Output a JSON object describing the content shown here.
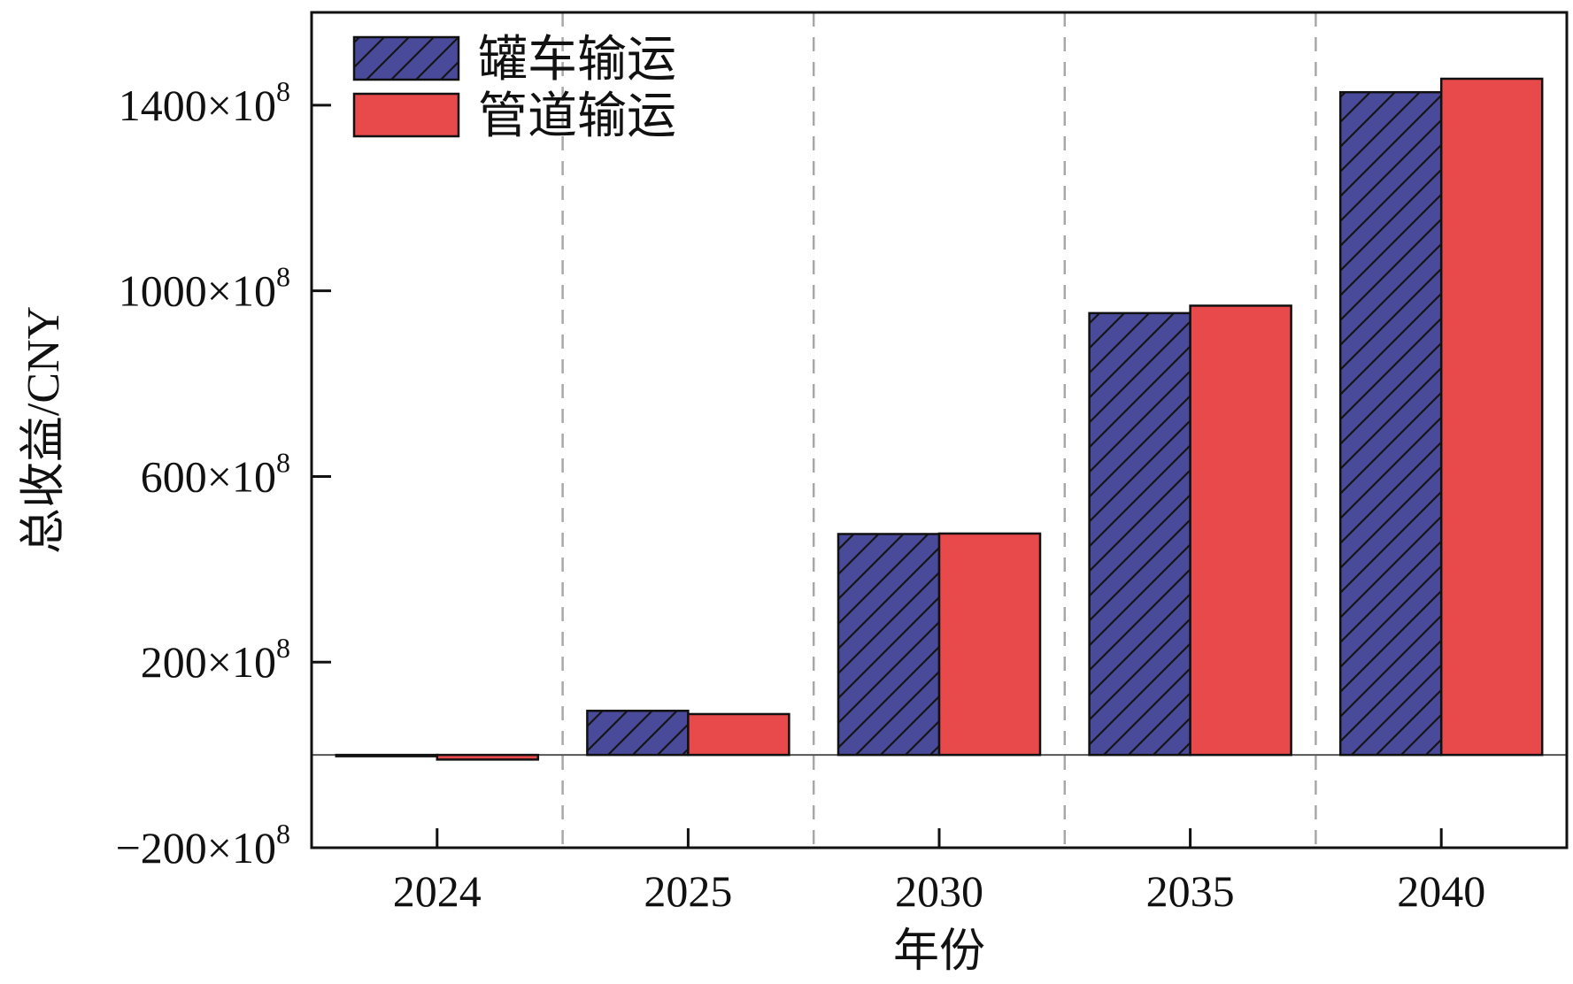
{
  "chart_data": {
    "type": "bar",
    "categories": [
      "2024",
      "2025",
      "2030",
      "2035",
      "2040"
    ],
    "series": [
      {
        "name": "罐车输运",
        "values": [
          -2,
          95,
          476,
          952,
          1428
        ],
        "color": "#4a4a9a",
        "pattern": "hatch"
      },
      {
        "name": "管道输运",
        "values": [
          -10,
          88,
          477,
          968,
          1457
        ],
        "color": "#e8494b",
        "pattern": "solid"
      }
    ],
    "xlabel": "年份",
    "ylabel": "总收益/CNY",
    "ylim": [
      -200,
      1600
    ],
    "yticks": [
      {
        "value": -200,
        "base": "−200×10",
        "exp": "8"
      },
      {
        "value": 200,
        "base": "200×10",
        "exp": "8"
      },
      {
        "value": 600,
        "base": "600×10",
        "exp": "8"
      },
      {
        "value": 1000,
        "base": "1000×10",
        "exp": "8"
      },
      {
        "value": 1400,
        "base": "1400×10",
        "exp": "8"
      }
    ],
    "zero_line": true,
    "category_separators": "dashed",
    "legend_position": "top-left"
  }
}
